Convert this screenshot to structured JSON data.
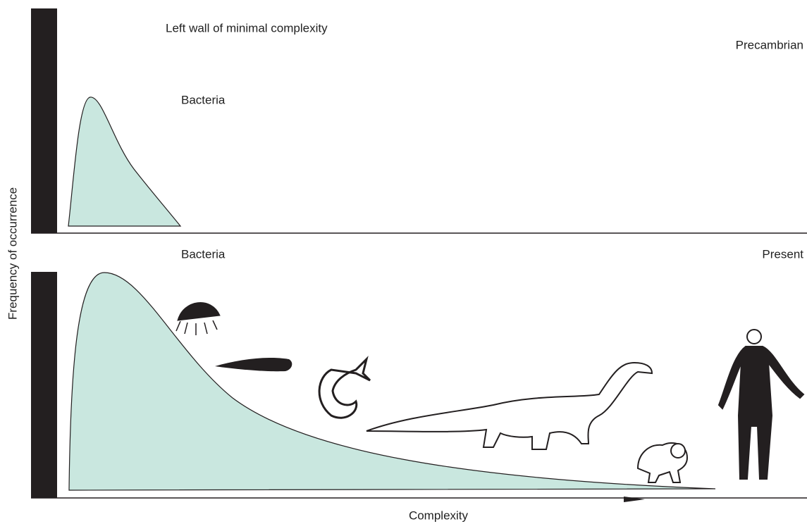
{
  "labels": {
    "wall": "Left wall of minimal complexity",
    "precambrian": "Precambrian",
    "bacteria_top": "Bacteria",
    "bacteria_bottom": "Bacteria",
    "present": "Present",
    "y_axis": "Frequency of occurrence",
    "x_axis": "Complexity"
  }
}
